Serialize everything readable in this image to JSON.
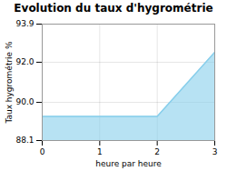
{
  "chart_data": {
    "type": "area",
    "title": "Evolution du taux d'hygrométrie",
    "xlabel": "heure par heure",
    "ylabel": "Taux hygrométrie %",
    "x": [
      0,
      2,
      3
    ],
    "values": [
      89.3,
      89.3,
      92.5
    ],
    "color": "#87ceeb",
    "xlim": [
      0,
      3
    ],
    "ylim": [
      88.1,
      93.9
    ],
    "xticks": [
      0,
      1,
      2,
      3
    ],
    "yticks": [
      88.1,
      {
        "value": 90,
        "label": "90.0"
      },
      {
        "value": 92,
        "label": "92.0"
      },
      93.9
    ],
    "grid": true
  }
}
